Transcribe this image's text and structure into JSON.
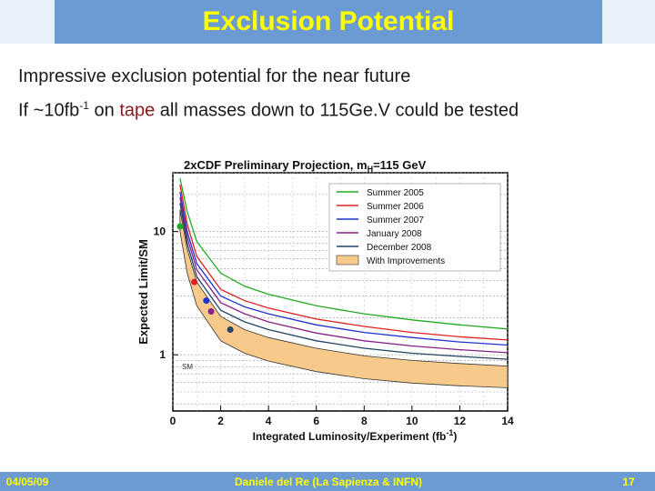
{
  "slide": {
    "title": "Exclusion Potential",
    "bullet1": {
      "text": "Impressive exclusion potential for the near future"
    },
    "bullet2": {
      "pre": "If ~10fb",
      "sup": "-1",
      "mid": " on ",
      "hl": "tape",
      "post": " all masses down to 115Ge.V could be tested"
    },
    "footer_date": "04/05/09",
    "footer_author": "Daniele del Re (La Sapienza & INFN)",
    "page_number": "17"
  },
  "chart_data": {
    "type": "line",
    "title": "2xCDF Preliminary Projection, m",
    "title_sub": "H",
    "title_tail": "=115 GeV",
    "xlabel": "Integrated Luminosity/Experiment (fb",
    "xlabel_sup": "-1",
    "xlabel_tail": ")",
    "ylabel": "Expected Limit/SM",
    "xlim": [
      0,
      14
    ],
    "ylim": [
      0.35,
      30
    ],
    "y_scale": "log",
    "x_ticks": [
      "0",
      "2",
      "4",
      "6",
      "8",
      "10",
      "12",
      "14"
    ],
    "y_ticks": [
      {
        "value": 10,
        "label": "10"
      },
      {
        "value": 1,
        "label": "1"
      }
    ],
    "sm_label": "SM",
    "legend_position": "top-right",
    "legend": [
      {
        "name": "Summer 2005",
        "color": "#22aa22"
      },
      {
        "name": "Summer 2006",
        "color": "#dd2222"
      },
      {
        "name": "Summer 2007",
        "color": "#2233cc"
      },
      {
        "name": "January 2008",
        "color": "#882288"
      },
      {
        "name": "December 2008",
        "color": "#224466"
      },
      {
        "name": "With Improvements",
        "color": "#f7c98a",
        "band": true
      }
    ],
    "series": [
      {
        "name": "Summer 2005",
        "color": "#22aa22",
        "x": [
          0.3,
          0.6,
          1,
          2,
          3,
          4,
          6,
          8,
          10,
          12,
          14
        ],
        "y": [
          27,
          14.5,
          8.3,
          4.6,
          3.6,
          3.1,
          2.5,
          2.15,
          1.92,
          1.75,
          1.62
        ]
      },
      {
        "name": "Summer 2006",
        "color": "#dd2222",
        "x": [
          0.3,
          0.6,
          1,
          2,
          3,
          4,
          6,
          8,
          10,
          12,
          14
        ],
        "y": [
          24,
          11.5,
          6.3,
          3.4,
          2.75,
          2.4,
          1.95,
          1.7,
          1.52,
          1.4,
          1.32
        ]
      },
      {
        "name": "Summer 2007",
        "color": "#2233cc",
        "x": [
          0.3,
          0.6,
          1,
          2,
          3,
          4,
          6,
          8,
          10,
          12,
          14
        ],
        "y": [
          21,
          10,
          5.5,
          3.0,
          2.45,
          2.15,
          1.75,
          1.52,
          1.38,
          1.27,
          1.2
        ]
      },
      {
        "name": "January 2008",
        "color": "#882288",
        "x": [
          0.3,
          0.6,
          1,
          2,
          3,
          4,
          6,
          8,
          10,
          12,
          14
        ],
        "y": [
          19,
          9,
          4.9,
          2.65,
          2.15,
          1.85,
          1.5,
          1.3,
          1.18,
          1.1,
          1.04
        ]
      },
      {
        "name": "December 2008",
        "color": "#224466",
        "x": [
          0.3,
          0.6,
          1,
          2,
          3,
          4,
          6,
          8,
          10,
          12,
          14
        ],
        "y": [
          17,
          8,
          4.3,
          2.3,
          1.85,
          1.6,
          1.3,
          1.13,
          1.03,
          0.97,
          0.92
        ]
      }
    ],
    "band": {
      "name": "With Improvements",
      "x": [
        0.3,
        0.6,
        1,
        2,
        3,
        4,
        6,
        8,
        10,
        12,
        14
      ],
      "y_upper": [
        15,
        7.2,
        3.9,
        2.05,
        1.6,
        1.38,
        1.13,
        0.98,
        0.9,
        0.85,
        0.81
      ],
      "y_lower": [
        10,
        4.6,
        2.5,
        1.3,
        1.03,
        0.89,
        0.73,
        0.64,
        0.59,
        0.56,
        0.54
      ]
    },
    "markers": [
      {
        "x": 0.3,
        "y": 11,
        "color": "#22aa22"
      },
      {
        "x": 0.9,
        "y": 3.9,
        "color": "#dd2222"
      },
      {
        "x": 1.4,
        "y": 2.75,
        "color": "#2233cc"
      },
      {
        "x": 1.6,
        "y": 2.25,
        "color": "#882288"
      },
      {
        "x": 2.4,
        "y": 1.6,
        "color": "#224466"
      }
    ]
  }
}
